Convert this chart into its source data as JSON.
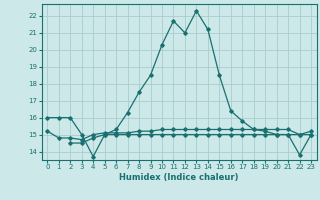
{
  "xlabel": "Humidex (Indice chaleur)",
  "bg_color": "#cce8e8",
  "grid_color": "#aacccc",
  "line_color": "#1a7070",
  "xlim": [
    -0.5,
    23.5
  ],
  "ylim": [
    13.5,
    22.7
  ],
  "xticks": [
    0,
    1,
    2,
    3,
    4,
    5,
    6,
    7,
    8,
    9,
    10,
    11,
    12,
    13,
    14,
    15,
    16,
    17,
    18,
    19,
    20,
    21,
    22,
    23
  ],
  "yticks": [
    14,
    15,
    16,
    17,
    18,
    19,
    20,
    21,
    22
  ],
  "line1_x": [
    0,
    1,
    2,
    3,
    4,
    5,
    6,
    7,
    8,
    9,
    10,
    11,
    12,
    13,
    14,
    15,
    16,
    17,
    18,
    19,
    20,
    21,
    22,
    23
  ],
  "line1_y": [
    16.0,
    16.0,
    16.0,
    15.0,
    13.7,
    15.0,
    15.3,
    16.3,
    17.5,
    18.5,
    20.3,
    21.7,
    21.0,
    22.3,
    21.2,
    18.5,
    16.4,
    15.8,
    15.3,
    15.2,
    15.0,
    15.0,
    13.8,
    15.0
  ],
  "line2_x": [
    2,
    3,
    4,
    5,
    6,
    7,
    8,
    9,
    10,
    11,
    12,
    13,
    14,
    15,
    16,
    17,
    18,
    19,
    20,
    21,
    22,
    23
  ],
  "line2_y": [
    14.5,
    14.5,
    14.8,
    15.0,
    15.0,
    15.0,
    15.0,
    15.0,
    15.0,
    15.0,
    15.0,
    15.0,
    15.0,
    15.0,
    15.0,
    15.0,
    15.0,
    15.0,
    15.0,
    15.0,
    15.0,
    15.0
  ],
  "line3_x": [
    0,
    1,
    2,
    3,
    4,
    5,
    6,
    7,
    8,
    9,
    10,
    11,
    12,
    13,
    14,
    15,
    16,
    17,
    18,
    19,
    20,
    21,
    22,
    23
  ],
  "line3_y": [
    15.2,
    14.8,
    14.8,
    14.7,
    15.0,
    15.1,
    15.1,
    15.1,
    15.2,
    15.2,
    15.3,
    15.3,
    15.3,
    15.3,
    15.3,
    15.3,
    15.3,
    15.3,
    15.3,
    15.3,
    15.3,
    15.3,
    15.0,
    15.2
  ]
}
